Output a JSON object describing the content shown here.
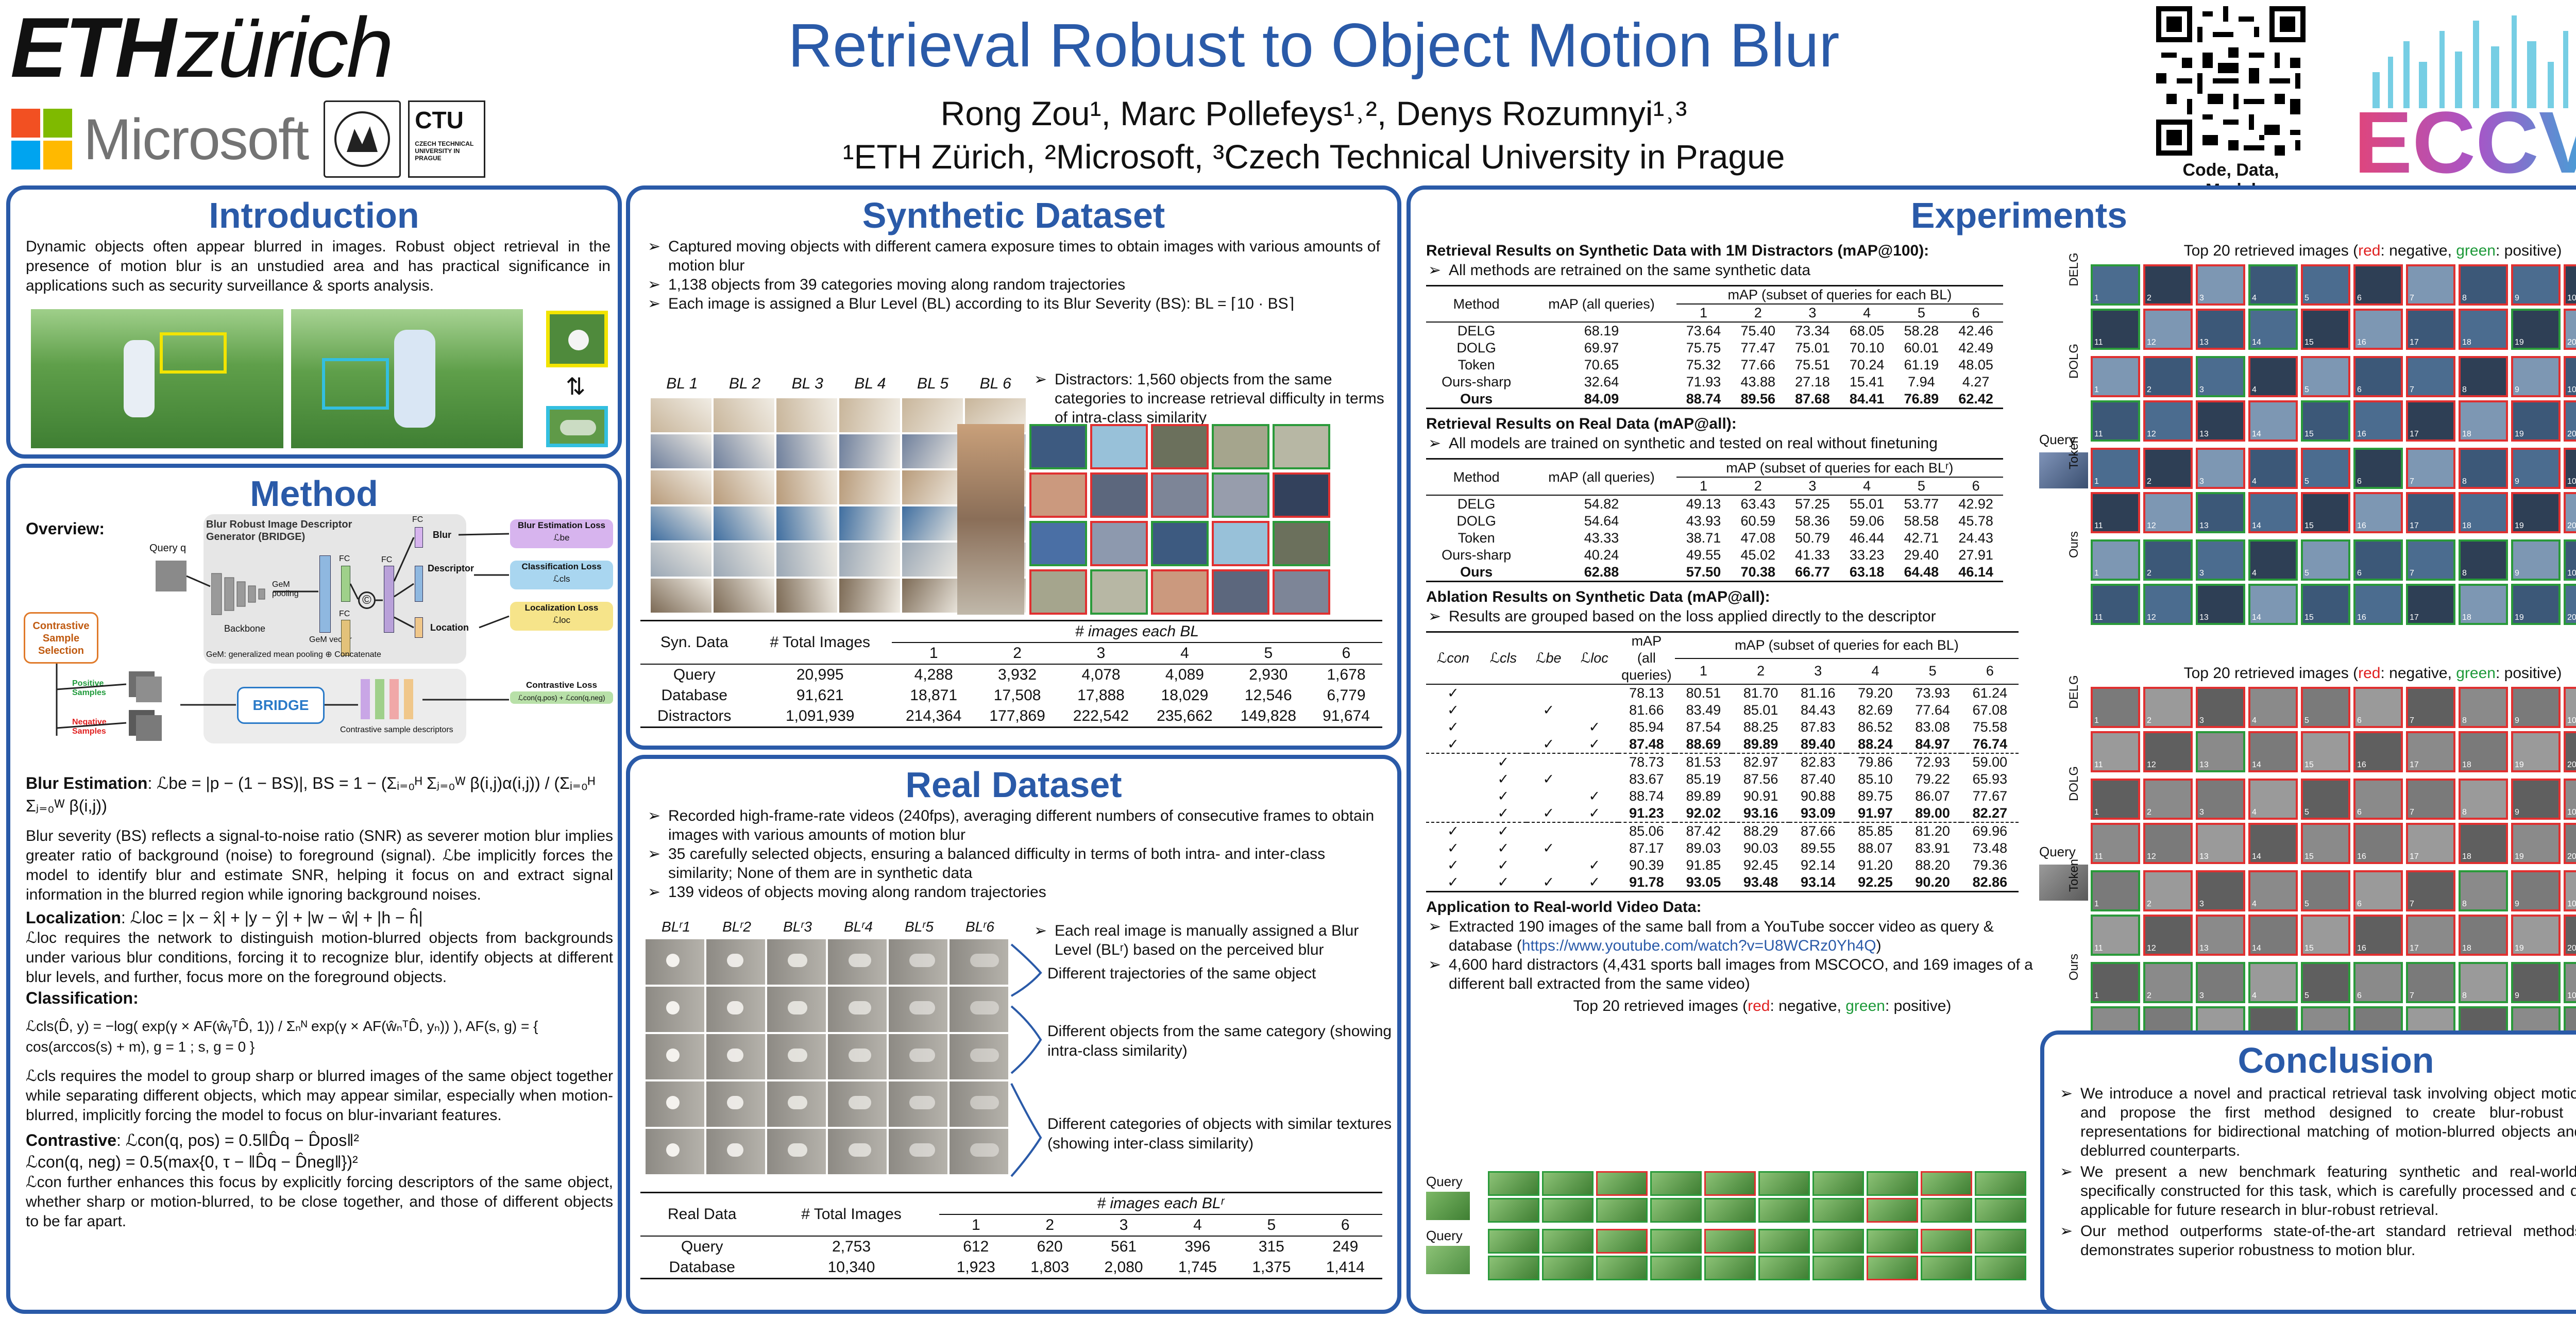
{
  "header": {
    "eth_bold": "ETH",
    "eth_italic": "zürich",
    "microsoft": "Microsoft",
    "ctu": "CTU",
    "ctu_full": "CZECH TECHNICAL UNIVERSITY IN PRAGUE",
    "title": "Retrieval Robust to Object Motion Blur",
    "authors": "Rong Zou¹, Marc Pollefeys¹˒², Denys Rozumnyi¹˒³",
    "affiliations": "¹ETH Zürich,  ²Microsoft, ³Czech Technical University in Prague",
    "qr_caption": "Code, Data, Model",
    "eccv": "ECCV",
    "colors": {
      "title": "#2a5aa8",
      "ms_red": "#f25022",
      "ms_green": "#7fba00",
      "ms_blue": "#00a4ef",
      "ms_yellow": "#ffb900"
    }
  },
  "intro": {
    "title": "Introduction",
    "text": "Dynamic objects often appear blurred in images. Robust object retrieval in the presence of motion blur is an unstudied area and has practical significance in applications such as security surveillance & sports analysis."
  },
  "method": {
    "title": "Method",
    "overview": "Overview:",
    "query": "Query q",
    "bridge_title": "Blur Robust Image Descriptor Generator (BRIDGE)",
    "backbone": "Backbone",
    "gem_pooling": "GeM pooling",
    "gem_vector": "GeM vector",
    "fc": "FC",
    "blur": "Blur",
    "descriptor": "Descriptor",
    "location": "Location",
    "gem_note": "GeM: generalized mean pooling",
    "concat": "Concatenate",
    "blur_loss": "Blur Estimation Loss",
    "blur_loss_sym": "ℒbe",
    "cls_loss": "Classification Loss",
    "cls_loss_sym": "ℒcls",
    "loc_loss": "Localization Loss",
    "loc_loss_sym": "ℒloc",
    "contrastive_loss": "Contrastive Loss",
    "contrastive_sym": "ℒcon(q,pos) + ℒcon(q,neg)",
    "css": "Contrastive Sample Selection",
    "positive": "Positive Samples",
    "negative": "Negative Samples",
    "bridge": "BRIDGE",
    "csd": "Contrastive sample descriptors",
    "blur_est_label": "Blur Estimation",
    "blur_est_eq": ": ℒbe = |p − (1 − BS)|,   BS = 1 − (Σᵢ₌₀ᴴ Σⱼ₌₀ᵂ β(i,j)α(i,j)) / (Σᵢ₌₀ᴴ Σⱼ₌₀ᵂ β(i,j))",
    "blur_text": "Blur severity (BS) reflects a signal-to-noise ratio (SNR) as severer motion blur implies greater ratio of background (noise) to foreground (signal). ℒbe implicitly forces the model to identify blur and estimate SNR, helping it focus on and extract signal information in the blurred region while ignoring background noises.",
    "loc_label": "Localization",
    "loc_eq": ": ℒloc = |x − x̂| + |y − ŷ| + |w − ŵ| + |h − ĥ|",
    "loc_text": "ℒloc requires the network to distinguish motion-blurred objects from backgrounds under various blur conditions, forcing it to recognize blur, identify objects at different blur levels, and further, focus more on the foreground objects.",
    "cls_label": "Classification",
    "cls_eq": "ℒcls(D̂, y) = −log( exp(γ × AF(ŵᵧᵀD̂, 1)) / Σₙᴺ exp(γ × AF(ŵₙᵀD̂, yₙ)) ),  AF(s, g) = { cos(arccos(s) + m), g = 1 ;  s, g = 0 }",
    "cls_text": "ℒcls requires the model to group sharp or blurred images of the same object together while separating different objects, which may appear similar, especially when motion-blurred, implicitly forcing the model to focus on blur-invariant features.",
    "con_label": "Contrastive",
    "con_eq1": ": ℒcon(q, pos) = 0.5‖D̂q − D̂pos‖²",
    "con_eq2": "ℒcon(q, neg) = 0.5(max{0, τ − ‖D̂q − D̂neg‖})²",
    "con_text": "ℒcon further enhances this focus by explicitly forcing descriptors of the same object, whether sharp or motion-blurred, to be close together, and those of different objects to be far apart."
  },
  "synthetic": {
    "title": "Synthetic Dataset",
    "bullets": [
      "Captured moving objects with different camera exposure times to obtain images with various amounts of motion blur",
      "1,138 objects from 39 categories moving along random trajectories",
      "Each image is assigned a Blur Level (BL) according to its Blur Severity (BS): BL = ⌈10 · BS⌉"
    ],
    "bl_labels": [
      "BL 1",
      "BL 2",
      "BL 3",
      "BL 4",
      "BL 5",
      "BL 6"
    ],
    "distractors": "Distractors: 1,560 objects from the same categories to increase retrieval difficulty in terms of intra-class similarity",
    "table": {
      "col0": "Syn. Data",
      "col1": "# Total Images",
      "group": "# images each BL",
      "levels": [
        "1",
        "2",
        "3",
        "4",
        "5",
        "6"
      ],
      "rows": [
        {
          "name": "Query",
          "total": "20,995",
          "vals": [
            "4,288",
            "3,932",
            "4,078",
            "4,089",
            "2,930",
            "1,678"
          ]
        },
        {
          "name": "Database",
          "total": "91,621",
          "vals": [
            "18,871",
            "17,508",
            "17,888",
            "18,029",
            "12,546",
            "6,779"
          ]
        },
        {
          "name": "Distractors",
          "total": "1,091,939",
          "vals": [
            "214,364",
            "177,869",
            "222,542",
            "235,662",
            "149,828",
            "91,674"
          ]
        }
      ]
    }
  },
  "real": {
    "title": "Real Dataset",
    "bullets": [
      "Recorded high-frame-rate videos (240fps), averaging different numbers of consecutive frames to obtain images with various amounts of motion blur",
      "35 carefully selected objects, ensuring a balanced difficulty in terms of both intra- and inter-class similarity; None of them are in synthetic data",
      "139 videos of objects moving along random trajectories"
    ],
    "bl_labels": [
      "BLʳ1",
      "BLʳ2",
      "BLʳ3",
      "BLʳ4",
      "BLʳ5",
      "BLʳ6"
    ],
    "assign": "Each real image is manually assigned a Blur Level (BLʳ) based on the  perceived blur",
    "notes": [
      "Different trajectories of the same object",
      "Different objects from the same category (showing intra-class similarity)",
      "Different categories of objects with similar textures (showing inter-class similarity)"
    ],
    "table": {
      "col0": "Real Data",
      "col1": "# Total Images",
      "group": "# images each BLʳ",
      "levels": [
        "1",
        "2",
        "3",
        "4",
        "5",
        "6"
      ],
      "rows": [
        {
          "name": "Query",
          "total": "2,753",
          "vals": [
            "612",
            "620",
            "561",
            "396",
            "315",
            "249"
          ]
        },
        {
          "name": "Database",
          "total": "10,340",
          "vals": [
            "1,923",
            "1,803",
            "2,080",
            "1,745",
            "1,375",
            "1,414"
          ]
        }
      ]
    }
  },
  "experiments": {
    "title": "Experiments",
    "syn": {
      "heading": "Retrieval Results on Synthetic Data with 1M Distractors (mAP@100):",
      "note": "All methods are retrained on the same synthetic data",
      "h_method": "Method",
      "h_all": "mAP (all queries)",
      "h_group": "mAP (subset of queries for each BL)",
      "levels": [
        "1",
        "2",
        "3",
        "4",
        "5",
        "6"
      ],
      "rows": [
        {
          "m": "DELG",
          "all": "68.19",
          "v": [
            "73.64",
            "75.40",
            "73.34",
            "68.05",
            "58.28",
            "42.46"
          ]
        },
        {
          "m": "DOLG",
          "all": "69.97",
          "v": [
            "75.75",
            "77.47",
            "75.01",
            "70.10",
            "60.01",
            "42.49"
          ]
        },
        {
          "m": "Token",
          "all": "70.65",
          "v": [
            "75.32",
            "77.66",
            "75.51",
            "70.24",
            "61.19",
            "48.05"
          ]
        },
        {
          "m": "Ours-sharp",
          "all": "32.64",
          "v": [
            "71.93",
            "43.88",
            "27.18",
            "15.41",
            "7.94",
            "4.27"
          ]
        },
        {
          "m": "Ours",
          "all": "84.09",
          "v": [
            "88.74",
            "89.56",
            "87.68",
            "84.41",
            "76.89",
            "62.42"
          ]
        }
      ]
    },
    "real": {
      "heading": "Retrieval Results on Real Data (mAP@all):",
      "note": "All models are trained on synthetic and tested on real without finetuning",
      "h_method": "Method",
      "h_all": "mAP (all queries)",
      "h_group": "mAP (subset of queries for each BLʳ)",
      "levels": [
        "1",
        "2",
        "3",
        "4",
        "5",
        "6"
      ],
      "rows": [
        {
          "m": "DELG",
          "all": "54.82",
          "v": [
            "49.13",
            "63.43",
            "57.25",
            "55.01",
            "53.77",
            "42.92"
          ]
        },
        {
          "m": "DOLG",
          "all": "54.64",
          "v": [
            "43.93",
            "60.59",
            "58.36",
            "59.06",
            "58.58",
            "45.78"
          ]
        },
        {
          "m": "Token",
          "all": "43.33",
          "v": [
            "38.71",
            "47.08",
            "50.79",
            "46.44",
            "42.71",
            "24.43"
          ]
        },
        {
          "m": "Ours-sharp",
          "all": "40.24",
          "v": [
            "49.55",
            "45.02",
            "41.33",
            "33.23",
            "29.40",
            "27.91"
          ]
        },
        {
          "m": "Ours",
          "all": "62.88",
          "v": [
            "57.50",
            "70.38",
            "66.77",
            "63.18",
            "64.48",
            "46.14"
          ]
        }
      ]
    },
    "ablation": {
      "heading": "Ablation Results on Synthetic Data (mAP@all):",
      "note": "Results are grouped based on the loss applied directly to the descriptor",
      "h_con": "ℒcon",
      "h_cls": "ℒcls",
      "h_be": "ℒbe",
      "h_loc": "ℒloc",
      "h_all": "mAP (all queries)",
      "h_group": "mAP (subset of queries for each BL)",
      "levels": [
        "1",
        "2",
        "3",
        "4",
        "5",
        "6"
      ],
      "check": "✓",
      "rows": [
        {
          "c": [
            1,
            0,
            0,
            0
          ],
          "all": "78.13",
          "v": [
            "80.51",
            "81.70",
            "81.16",
            "79.20",
            "73.93",
            "61.24"
          ]
        },
        {
          "c": [
            1,
            0,
            1,
            0
          ],
          "all": "81.66",
          "v": [
            "83.49",
            "85.01",
            "84.43",
            "82.69",
            "77.64",
            "67.08"
          ]
        },
        {
          "c": [
            1,
            0,
            0,
            1
          ],
          "all": "85.94",
          "v": [
            "87.54",
            "88.25",
            "87.83",
            "86.52",
            "83.08",
            "75.58"
          ]
        },
        {
          "c": [
            1,
            0,
            1,
            1
          ],
          "all": "87.48",
          "v": [
            "88.69",
            "89.89",
            "89.40",
            "88.24",
            "84.97",
            "76.74"
          ],
          "bold": true
        },
        {
          "c": [
            0,
            1,
            0,
            0
          ],
          "all": "78.73",
          "v": [
            "81.53",
            "82.97",
            "82.83",
            "79.86",
            "72.93",
            "59.00"
          ],
          "dash": true
        },
        {
          "c": [
            0,
            1,
            1,
            0
          ],
          "all": "83.67",
          "v": [
            "85.19",
            "87.56",
            "87.40",
            "85.10",
            "79.22",
            "65.93"
          ]
        },
        {
          "c": [
            0,
            1,
            0,
            1
          ],
          "all": "88.74",
          "v": [
            "89.89",
            "90.91",
            "90.88",
            "89.75",
            "86.07",
            "77.67"
          ]
        },
        {
          "c": [
            0,
            1,
            1,
            1
          ],
          "all": "91.23",
          "v": [
            "92.02",
            "93.16",
            "93.09",
            "91.97",
            "89.00",
            "82.27"
          ],
          "bold": true
        },
        {
          "c": [
            1,
            1,
            0,
            0
          ],
          "all": "85.06",
          "v": [
            "87.42",
            "88.29",
            "87.66",
            "85.85",
            "81.20",
            "69.96"
          ],
          "dash": true
        },
        {
          "c": [
            1,
            1,
            1,
            0
          ],
          "all": "87.17",
          "v": [
            "89.03",
            "90.03",
            "89.55",
            "88.07",
            "83.91",
            "73.48"
          ]
        },
        {
          "c": [
            1,
            1,
            0,
            1
          ],
          "all": "90.39",
          "v": [
            "91.85",
            "92.45",
            "92.14",
            "91.20",
            "88.20",
            "79.36"
          ]
        },
        {
          "c": [
            1,
            1,
            1,
            1
          ],
          "all": "91.78",
          "v": [
            "93.05",
            "93.48",
            "93.14",
            "92.25",
            "90.20",
            "82.86"
          ],
          "bold": true
        }
      ]
    },
    "app": {
      "heading": "Application to Real-world Video Data:",
      "b1_pre": "Extracted 190 images of the same ball from a YouTube soccer video as query & database (",
      "b1_link": "https://www.youtube.com/watch?v=U8WCRz0Yh4Q",
      "b1_post": ")",
      "b2": "4,600 hard distractors (4,431 sports ball images from MSCOCO, and 169 images of a different ball extracted from the same video)",
      "top20_pre": "Top 20 retrieved images (",
      "neg": "red",
      "neg_post": ": negative, ",
      "pos": "green",
      "pos_post": ": positive)",
      "query": "Query"
    },
    "right": {
      "top20_pre": "Top 20 retrieved images (",
      "neg": "red",
      "neg_post": ": negative, ",
      "pos": "green",
      "pos_post": ": positive)",
      "query": "Query",
      "methods": [
        "DELG",
        "DOLG",
        "Token",
        "Ours"
      ],
      "grid1_neg": [
        [
          0,
          1,
          1,
          0,
          1,
          1,
          1,
          1,
          1,
          1
        ],
        [
          0,
          1,
          1,
          0,
          1,
          1,
          1,
          1,
          0,
          1
        ],
        [
          1,
          1,
          0,
          1,
          1,
          1,
          1,
          1,
          1,
          1
        ],
        [
          0,
          1,
          1,
          1,
          0,
          1,
          1,
          1,
          1,
          1
        ],
        [
          1,
          1,
          1,
          1,
          1,
          0,
          1,
          1,
          1,
          1
        ],
        [
          1,
          1,
          0,
          1,
          1,
          1,
          1,
          1,
          1,
          1
        ],
        [
          0,
          0,
          0,
          0,
          0,
          0,
          0,
          0,
          0,
          0
        ],
        [
          0,
          0,
          0,
          0,
          0,
          0,
          0,
          0,
          0,
          0
        ]
      ],
      "grid2_neg": [
        [
          1,
          1,
          1,
          1,
          1,
          1,
          1,
          1,
          1,
          1
        ],
        [
          1,
          1,
          0,
          1,
          1,
          1,
          1,
          1,
          1,
          1
        ],
        [
          1,
          1,
          1,
          1,
          1,
          1,
          1,
          1,
          1,
          1
        ],
        [
          1,
          1,
          1,
          1,
          1,
          1,
          1,
          1,
          1,
          1
        ],
        [
          0,
          1,
          1,
          1,
          1,
          1,
          1,
          0,
          1,
          1
        ],
        [
          0,
          1,
          1,
          1,
          1,
          1,
          1,
          1,
          1,
          1
        ],
        [
          0,
          0,
          0,
          0,
          0,
          0,
          0,
          0,
          0,
          0
        ],
        [
          0,
          0,
          0,
          0,
          0,
          0,
          0,
          0,
          0,
          0
        ]
      ]
    }
  },
  "conclusion": {
    "title": "Conclusion",
    "bullets": [
      "We introduce a novel and practical retrieval task involving object motion blur and propose the first method designed to create blur-robust image representations for bidirectional matching of motion-blurred objects and their deblurred counterparts.",
      "We present a new benchmark featuring synthetic and real-world data specifically constructed for this task, which is carefully processed and directly applicable for future research in blur-robust retrieval.",
      "Our method outperforms state-of-the-art standard retrieval methods and demonstrates superior robustness to motion blur."
    ]
  }
}
